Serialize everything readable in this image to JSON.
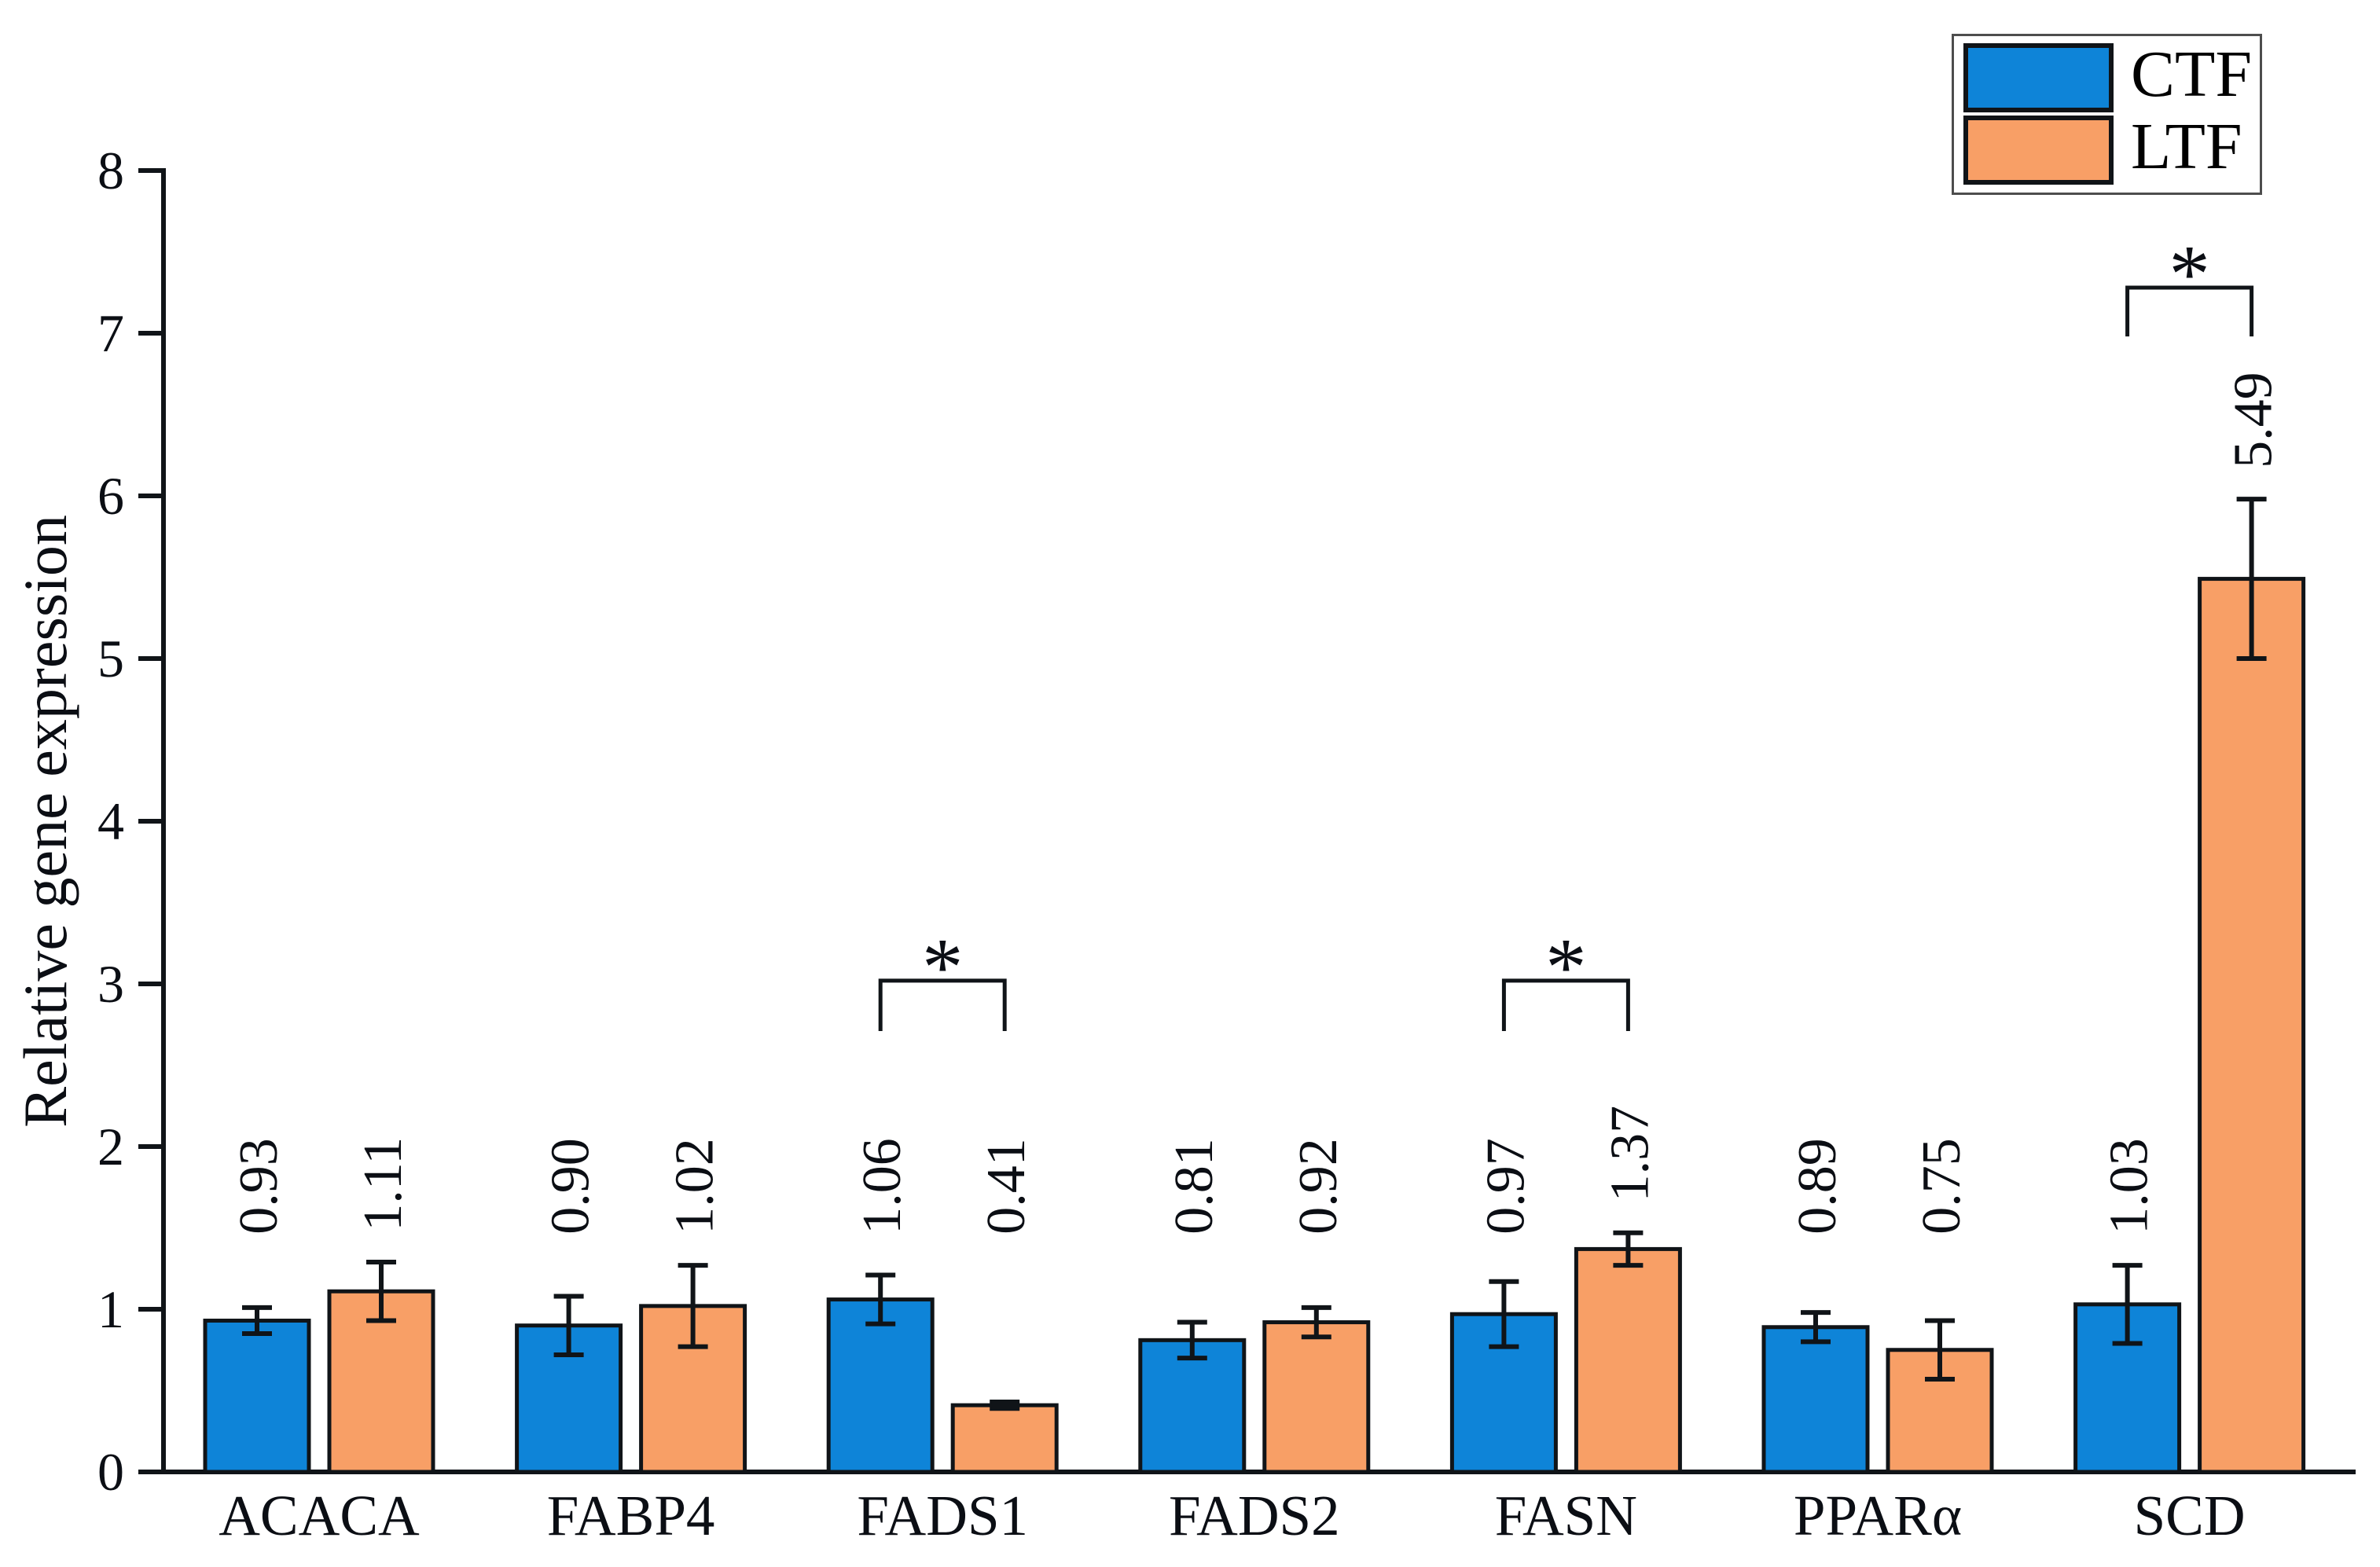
{
  "chart_data": {
    "type": "bar",
    "title": "",
    "xlabel": "",
    "ylabel": "Relative gene expression",
    "ylim": [
      0,
      8
    ],
    "yticks": [
      0,
      1,
      2,
      3,
      4,
      5,
      6,
      7,
      8
    ],
    "grid": false,
    "legend_position": "top-right",
    "categories": [
      "ACACA",
      "FABP4",
      "FADS1",
      "FADS2",
      "FASN",
      "PPARα",
      "SCD"
    ],
    "series": [
      {
        "name": "CTF",
        "color": "#0e84d8",
        "values": [
          0.93,
          0.9,
          1.06,
          0.81,
          0.97,
          0.89,
          1.03
        ],
        "errors": [
          0.08,
          0.18,
          0.15,
          0.11,
          0.2,
          0.09,
          0.24
        ],
        "labels": [
          "0.93",
          "0.90",
          "1.06",
          "0.81",
          "0.97",
          "0.89",
          "1.03"
        ]
      },
      {
        "name": "LTF",
        "color": "#f89f66",
        "values": [
          1.11,
          1.02,
          0.41,
          0.92,
          1.37,
          0.75,
          5.49
        ],
        "errors": [
          0.18,
          0.25,
          0.02,
          0.09,
          0.1,
          0.18,
          0.49
        ],
        "labels": [
          "1.11",
          "1.02",
          "0.41",
          "0.92",
          "1.37",
          "0.75",
          "5.49"
        ]
      }
    ],
    "significance": [
      {
        "category": "FADS1",
        "symbol": "*",
        "bracket_y": 3.02,
        "leg_y": 2.71
      },
      {
        "category": "FASN",
        "symbol": "*",
        "bracket_y": 3.02,
        "leg_y": 2.71
      },
      {
        "category": "SCD",
        "symbol": "*",
        "bracket_y": 7.28,
        "leg_y": 6.98
      }
    ],
    "bar_edge_color": "#101418",
    "error_color": "#101418",
    "axis_color": "#101418"
  },
  "legend": {
    "items": [
      {
        "label": "CTF",
        "color": "#0e84d8"
      },
      {
        "label": "LTF",
        "color": "#f89f66"
      }
    ]
  }
}
